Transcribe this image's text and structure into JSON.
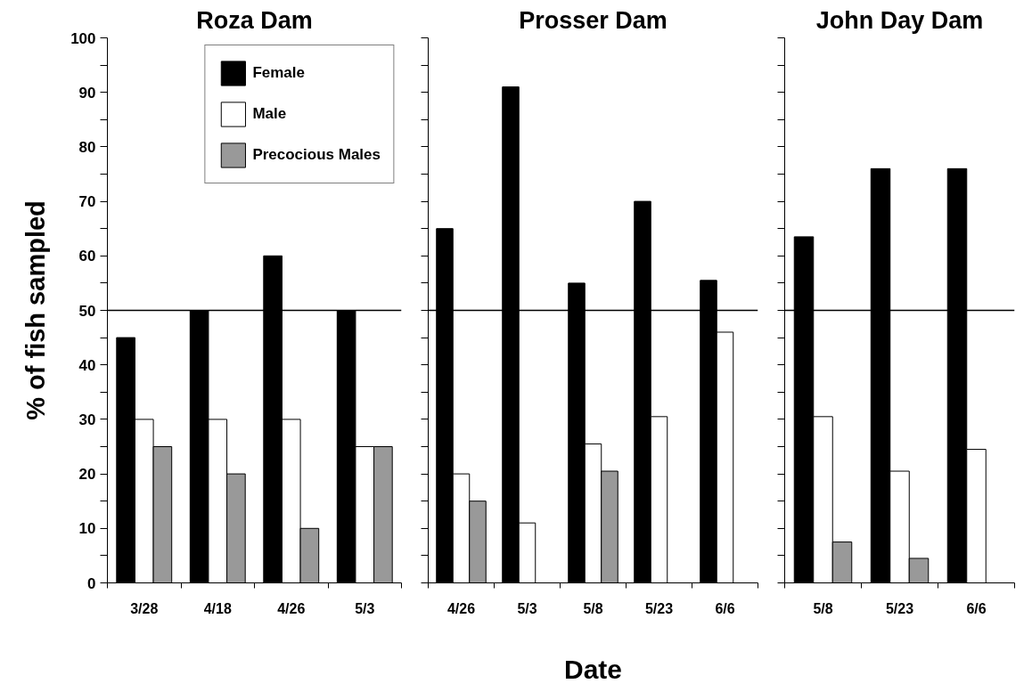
{
  "chart_data": [
    {
      "type": "bar",
      "title": "Roza Dam",
      "ylabel": "% of fish sampled",
      "categories": [
        "3/28",
        "4/18",
        "4/26",
        "5/3"
      ],
      "series": [
        {
          "name": "Female",
          "color": "#000000",
          "values": [
            45,
            50,
            60,
            50
          ]
        },
        {
          "name": "Male",
          "color": "#ffffff",
          "values": [
            30,
            30,
            30,
            25
          ]
        },
        {
          "name": "Precocious Males",
          "color": "#999999",
          "values": [
            25,
            20,
            10,
            25
          ]
        }
      ],
      "ylim": [
        0,
        100
      ],
      "yticks": [
        0,
        {
          "value": 5,
          "label": null
        },
        10,
        {
          "value": 15,
          "label": null
        },
        20,
        {
          "value": 25,
          "label": null
        },
        30,
        {
          "value": 35,
          "label": null
        },
        40,
        {
          "value": 45,
          "label": null
        },
        50,
        {
          "value": 55,
          "label": null
        },
        60,
        {
          "value": 65,
          "label": null
        },
        70,
        {
          "value": 75,
          "label": null
        },
        80,
        {
          "value": 85,
          "label": null
        },
        90,
        {
          "value": 95,
          "label": null
        },
        100
      ],
      "ref_lines": [
        {
          "axis": "y",
          "value": 50,
          "color": "#000000"
        }
      ],
      "legend": "top right",
      "grid": false
    },
    {
      "type": "bar",
      "title": "Prosser Dam",
      "xlabel": "Date",
      "categories": [
        "4/26",
        "5/3",
        "5/8",
        "5/23",
        "6/6"
      ],
      "series": [
        {
          "color": "#000000",
          "values": [
            65,
            91,
            55,
            70,
            55.5
          ]
        },
        {
          "color": "#ffffff",
          "values": [
            20,
            11,
            25.5,
            30.5,
            46
          ]
        },
        {
          "color": "#999999",
          "values": [
            15,
            null,
            20.5,
            null,
            null
          ]
        }
      ],
      "ylim": [
        0,
        100
      ],
      "yticks": [
        0,
        {
          "value": 5,
          "label": null
        },
        10,
        {
          "value": 15,
          "label": null
        },
        20,
        {
          "value": 25,
          "label": null
        },
        30,
        {
          "value": 35,
          "label": null
        },
        40,
        {
          "value": 45,
          "label": null
        },
        50,
        {
          "value": 55,
          "label": null
        },
        60,
        {
          "value": 65,
          "label": null
        },
        70,
        {
          "value": 75,
          "label": null
        },
        80,
        {
          "value": 85,
          "label": null
        },
        90,
        {
          "value": 95,
          "label": null
        },
        100
      ],
      "ref_lines": [
        {
          "axis": "y",
          "value": 50,
          "color": "#000000"
        }
      ],
      "tick_labels": "x",
      "grid": false
    },
    {
      "type": "bar",
      "title": "John Day Dam",
      "categories": [
        "5/8",
        "5/23",
        "6/6"
      ],
      "series": [
        {
          "color": "#000000",
          "values": [
            63.5,
            76,
            76
          ]
        },
        {
          "color": "#ffffff",
          "values": [
            30.5,
            20.5,
            24.5
          ]
        },
        {
          "color": "#999999",
          "values": [
            7.5,
            4.5,
            null
          ]
        }
      ],
      "ylim": [
        0,
        100
      ],
      "yticks": [
        0,
        {
          "value": 5,
          "label": null
        },
        10,
        {
          "value": 15,
          "label": null
        },
        20,
        {
          "value": 25,
          "label": null
        },
        30,
        {
          "value": 35,
          "label": null
        },
        40,
        {
          "value": 45,
          "label": null
        },
        50,
        {
          "value": 55,
          "label": null
        },
        60,
        {
          "value": 65,
          "label": null
        },
        70,
        {
          "value": 75,
          "label": null
        },
        80,
        {
          "value": 85,
          "label": null
        },
        90,
        {
          "value": 95,
          "label": null
        },
        100
      ],
      "ref_lines": [
        {
          "axis": "y",
          "value": 50,
          "color": "#000000"
        }
      ],
      "tick_labels": "x",
      "grid": false
    }
  ]
}
